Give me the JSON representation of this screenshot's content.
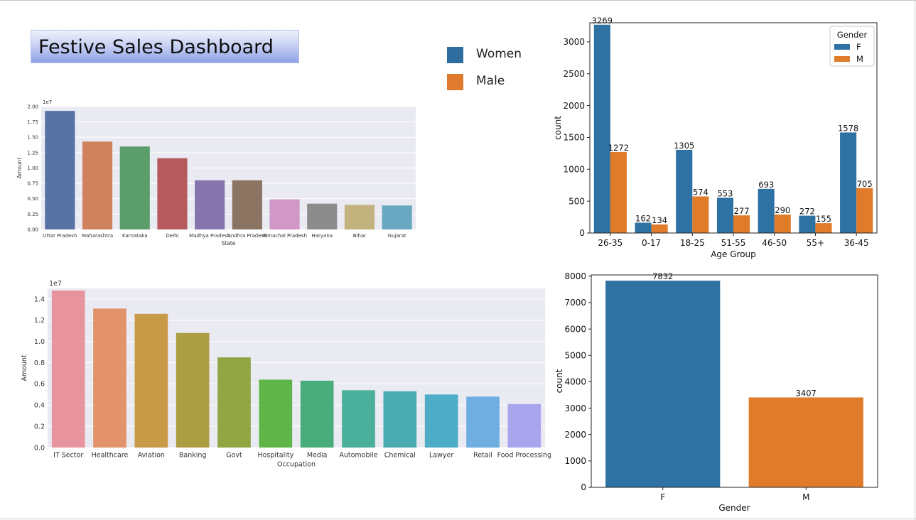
{
  "dashboard_title": "Festive Sales Dashboard",
  "legend": [
    {
      "label": "Women",
      "color": "#2f6d9e"
    },
    {
      "label": "Male",
      "color": "#e07a2d"
    }
  ],
  "chart_data": [
    {
      "id": "state",
      "type": "bar",
      "title": "",
      "xlabel": "State",
      "ylabel": "Amount",
      "scale_label": "1e7",
      "ylim": [
        0,
        2.0
      ],
      "yticks": [
        "0.00",
        "0.25",
        "0.50",
        "0.75",
        "1.00",
        "1.25",
        "1.50",
        "1.75",
        "2.00"
      ],
      "categories": [
        "Uttar Pradesh",
        "Maharashtra",
        "Karnataka",
        "Delhi",
        "Madhya Pradesh",
        "Andhra Pradesh",
        "Himachal Pradesh",
        "Haryana",
        "Bihar",
        "Gujarat"
      ],
      "values": [
        1.93,
        1.43,
        1.35,
        1.16,
        0.8,
        0.8,
        0.49,
        0.42,
        0.4,
        0.39
      ],
      "colors": [
        "#5773a6",
        "#d0825f",
        "#5b9e6c",
        "#b75a5e",
        "#8675ac",
        "#8c7462",
        "#d197c6",
        "#8c8c8c",
        "#c2b37e",
        "#6aa8c1"
      ],
      "grid": true
    },
    {
      "id": "age_group",
      "type": "bar",
      "title": "",
      "xlabel": "Age Group",
      "ylabel": "count",
      "ylim": [
        0,
        3300
      ],
      "yticks": [
        "0",
        "500",
        "1000",
        "1500",
        "2000",
        "2500",
        "3000"
      ],
      "categories": [
        "26-35",
        "0-17",
        "18-25",
        "51-55",
        "46-50",
        "55+",
        "36-45"
      ],
      "legend_title": "Gender",
      "legend_position": "top-right",
      "series": [
        {
          "name": "F",
          "values": [
            3269,
            162,
            1305,
            553,
            693,
            272,
            1578
          ],
          "labels": [
            "3269",
            "162",
            "1305",
            "553",
            "693",
            "272",
            "1578"
          ],
          "color": "#2e71a3"
        },
        {
          "name": "M",
          "values": [
            1272,
            134,
            574,
            277,
            290,
            155,
            705
          ],
          "labels": [
            "1272",
            "134",
            "574",
            "277",
            "290",
            "155",
            "705"
          ],
          "color": "#e07b2a"
        }
      ],
      "grid": false
    },
    {
      "id": "occupation",
      "type": "bar",
      "title": "",
      "xlabel": "Occupation",
      "ylabel": "Amount",
      "scale_label": "1e7",
      "ylim": [
        0,
        1.5
      ],
      "yticks": [
        "0.0",
        "0.2",
        "0.4",
        "0.6",
        "0.8",
        "1.0",
        "1.2",
        "1.4"
      ],
      "categories": [
        "IT Sector",
        "Healthcare",
        "Aviation",
        "Banking",
        "Govt",
        "Hospitality",
        "Media",
        "Automobile",
        "Chemical",
        "Lawyer",
        "Retail",
        "Food Processing"
      ],
      "values": [
        1.48,
        1.31,
        1.26,
        1.08,
        0.85,
        0.64,
        0.63,
        0.54,
        0.53,
        0.5,
        0.48,
        0.41
      ],
      "colors": [
        "#e8949f",
        "#e2936b",
        "#c89a47",
        "#ab9e42",
        "#92a543",
        "#5fb548",
        "#48ad7a",
        "#4aaf9b",
        "#4aacb1",
        "#4eadc6",
        "#6eaee0",
        "#a9a5ed"
      ],
      "grid": true
    },
    {
      "id": "gender",
      "type": "bar",
      "title": "",
      "xlabel": "Gender",
      "ylabel": "count",
      "ylim": [
        0,
        8050
      ],
      "yticks": [
        "0",
        "1000",
        "2000",
        "3000",
        "4000",
        "5000",
        "6000",
        "7000",
        "8000"
      ],
      "categories": [
        "F",
        "M"
      ],
      "values": [
        7832,
        3407
      ],
      "labels": [
        "7832",
        "3407"
      ],
      "colors": [
        "#2e71a3",
        "#e07b2a"
      ],
      "grid": false
    }
  ]
}
